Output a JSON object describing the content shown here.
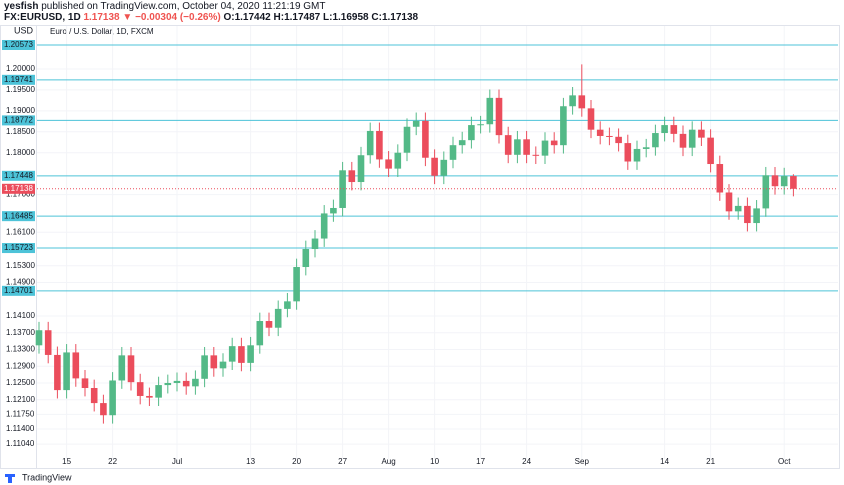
{
  "header": {
    "author": "yesfish",
    "published": "published on TradingView.com, October 04, 2020 11:21:19 GMT",
    "symbol": "FX:EURUSD, 1D",
    "last": "1.17138",
    "change": "▼ −0.00304 (−0.26%)",
    "open": "O:1.17442",
    "high": "H:1.17487",
    "low": "L:1.16958",
    "close": "C:1.17138"
  },
  "chart_data": {
    "type": "candlestick",
    "title": "Euro / U.S. Dollar, 1D, FXCM",
    "currency": "USD",
    "up_color": "#53b987",
    "down_color": "#eb4d5c",
    "level_color": "#4dc3d8",
    "grid": true,
    "ylim": [
      1.1078,
      1.2074
    ],
    "yticks": [
      {
        "value": 1.2,
        "label": "1.20000"
      },
      {
        "value": 1.195,
        "label": "1.19500"
      },
      {
        "value": 1.19,
        "label": "1.19000"
      },
      {
        "value": 1.185,
        "label": "1.18500"
      },
      {
        "value": 1.18,
        "label": "1.18000"
      },
      {
        "value": 1.17,
        "label": "1.17000"
      },
      {
        "value": 1.161,
        "label": "1.16100"
      },
      {
        "value": 1.153,
        "label": "1.15300"
      },
      {
        "value": 1.149,
        "label": "1.14900"
      },
      {
        "value": 1.141,
        "label": "1.14100"
      },
      {
        "value": 1.137,
        "label": "1.13700"
      },
      {
        "value": 1.133,
        "label": "1.13300"
      },
      {
        "value": 1.129,
        "label": "1.12900"
      },
      {
        "value": 1.125,
        "label": "1.12500"
      },
      {
        "value": 1.121,
        "label": "1.12100"
      },
      {
        "value": 1.1175,
        "label": "1.11750"
      },
      {
        "value": 1.114,
        "label": "1.11400"
      },
      {
        "value": 1.1104,
        "label": "1.11040"
      }
    ],
    "xticks": [
      {
        "value": 3,
        "label": "15"
      },
      {
        "value": 8,
        "label": "22"
      },
      {
        "value": 15,
        "label": "Jul"
      },
      {
        "value": 23,
        "label": "13"
      },
      {
        "value": 28,
        "label": "20"
      },
      {
        "value": 33,
        "label": "27"
      },
      {
        "value": 38,
        "label": "Aug"
      },
      {
        "value": 43,
        "label": "10"
      },
      {
        "value": 48,
        "label": "17"
      },
      {
        "value": 53,
        "label": "24"
      },
      {
        "value": 59,
        "label": "Sep"
      },
      {
        "value": 68,
        "label": "14"
      },
      {
        "value": 73,
        "label": "21"
      },
      {
        "value": 81,
        "label": "Oct"
      }
    ],
    "levels": [
      1.20573,
      1.19741,
      1.18772,
      1.17448,
      1.16485,
      1.15723,
      1.14701
    ],
    "open": [
      1.134,
      1.1376,
      1.1317,
      1.1233,
      1.1323,
      1.1261,
      1.1238,
      1.1202,
      1.1173,
      1.1256,
      1.1316,
      1.1252,
      1.1219,
      1.1215,
      1.1245,
      1.125,
      1.1255,
      1.1242,
      1.126,
      1.1316,
      1.1285,
      1.1301,
      1.1338,
      1.1298,
      1.134,
      1.1398,
      1.1382,
      1.1427,
      1.1445,
      1.1527,
      1.157,
      1.1595,
      1.1655,
      1.1668,
      1.1758,
      1.173,
      1.1794,
      1.1852,
      1.1784,
      1.1762,
      1.18,
      1.1862,
      1.1876,
      1.1788,
      1.1745,
      1.1783,
      1.1818,
      1.183,
      1.1866,
      1.1868,
      1.1931,
      1.1842,
      1.1795,
      1.1832,
      1.1795,
      1.1793,
      1.1829,
      1.1818,
      1.1911,
      1.1937,
      1.1906,
      1.1855,
      1.184,
      1.1838,
      1.1823,
      1.1779,
      1.1809,
      1.1813,
      1.1847,
      1.1866,
      1.1845,
      1.1812,
      1.1855,
      1.1836,
      1.1773,
      1.1705,
      1.166,
      1.1673,
      1.1632,
      1.1667,
      1.1746,
      1.172,
      1.17442
    ],
    "high": [
      1.1396,
      1.1396,
      1.1337,
      1.1343,
      1.1343,
      1.1281,
      1.1258,
      1.1222,
      1.1276,
      1.1336,
      1.1336,
      1.1272,
      1.1239,
      1.1265,
      1.127,
      1.1275,
      1.1275,
      1.128,
      1.1336,
      1.1336,
      1.1321,
      1.1358,
      1.1358,
      1.136,
      1.1418,
      1.1418,
      1.1447,
      1.1465,
      1.1547,
      1.159,
      1.1615,
      1.1675,
      1.1688,
      1.1778,
      1.1778,
      1.1814,
      1.1872,
      1.1872,
      1.1804,
      1.182,
      1.1882,
      1.1896,
      1.1896,
      1.1808,
      1.1803,
      1.1838,
      1.185,
      1.1886,
      1.1888,
      1.1951,
      1.1951,
      1.1862,
      1.1852,
      1.1852,
      1.1815,
      1.1849,
      1.1849,
      1.1931,
      1.1957,
      1.2011,
      1.1926,
      1.1875,
      1.186,
      1.1858,
      1.1843,
      1.1829,
      1.1833,
      1.1867,
      1.1886,
      1.1886,
      1.1865,
      1.1875,
      1.1875,
      1.1856,
      1.1793,
      1.1725,
      1.1693,
      1.1693,
      1.1687,
      1.1766,
      1.1766,
      1.1764,
      1.17487
    ],
    "low": [
      1.132,
      1.1297,
      1.1213,
      1.1213,
      1.1241,
      1.1218,
      1.1182,
      1.1153,
      1.1153,
      1.1236,
      1.1232,
      1.1199,
      1.1195,
      1.1195,
      1.1225,
      1.123,
      1.1222,
      1.1222,
      1.124,
      1.1265,
      1.1265,
      1.1281,
      1.1278,
      1.1278,
      1.132,
      1.1362,
      1.1362,
      1.1407,
      1.1425,
      1.1507,
      1.155,
      1.1575,
      1.1635,
      1.1648,
      1.171,
      1.171,
      1.1774,
      1.1764,
      1.1742,
      1.1742,
      1.178,
      1.1842,
      1.1768,
      1.1725,
      1.1725,
      1.1763,
      1.1798,
      1.181,
      1.1846,
      1.1848,
      1.1822,
      1.1775,
      1.1775,
      1.1775,
      1.1773,
      1.1773,
      1.1798,
      1.1798,
      1.1891,
      1.1886,
      1.1835,
      1.182,
      1.1818,
      1.1803,
      1.1759,
      1.1759,
      1.1789,
      1.1793,
      1.1827,
      1.1825,
      1.1792,
      1.1792,
      1.1816,
      1.1753,
      1.1685,
      1.164,
      1.164,
      1.1612,
      1.1612,
      1.1647,
      1.17,
      1.17,
      1.16958
    ],
    "close": [
      1.1376,
      1.1317,
      1.1233,
      1.1323,
      1.1261,
      1.1238,
      1.1202,
      1.1173,
      1.1256,
      1.1316,
      1.1252,
      1.1219,
      1.1215,
      1.1245,
      1.125,
      1.1255,
      1.1242,
      1.126,
      1.1316,
      1.1285,
      1.1301,
      1.1338,
      1.1298,
      1.134,
      1.1398,
      1.1382,
      1.1427,
      1.1445,
      1.1527,
      1.157,
      1.1595,
      1.1655,
      1.1668,
      1.1758,
      1.173,
      1.1794,
      1.1852,
      1.1784,
      1.1762,
      1.18,
      1.1862,
      1.1876,
      1.1788,
      1.1745,
      1.1783,
      1.1818,
      1.183,
      1.1866,
      1.1868,
      1.1931,
      1.1842,
      1.1795,
      1.1832,
      1.1795,
      1.1793,
      1.1829,
      1.1818,
      1.1911,
      1.1937,
      1.1906,
      1.1855,
      1.184,
      1.1838,
      1.1823,
      1.1779,
      1.1809,
      1.1813,
      1.1847,
      1.1866,
      1.1845,
      1.1812,
      1.1855,
      1.1836,
      1.1773,
      1.1705,
      1.166,
      1.1673,
      1.1632,
      1.1667,
      1.1746,
      1.172,
      1.17442,
      1.17138
    ]
  },
  "footer": {
    "brand": "TradingView"
  }
}
